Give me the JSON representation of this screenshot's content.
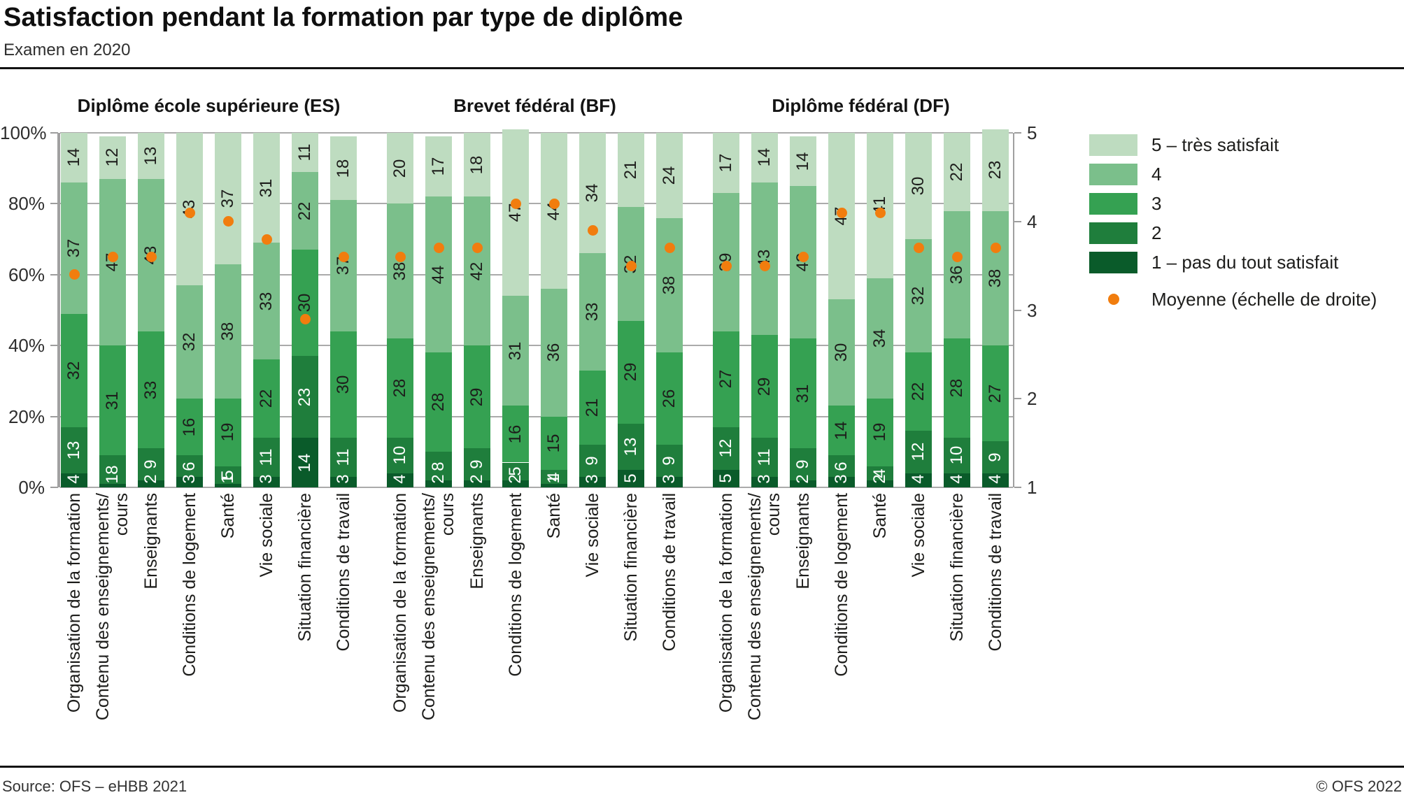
{
  "header": {
    "title": "Satisfaction pendant la formation par type de diplôme",
    "subtitle": "Examen en 2020"
  },
  "footer": {
    "source": "Source: OFS – eHBB 2021",
    "copyright": "© OFS 2022"
  },
  "legend": {
    "items": [
      {
        "label": "5 – très satisfait",
        "color": "#bedcc0"
      },
      {
        "label": "4",
        "color": "#7bbf8b"
      },
      {
        "label": "3",
        "color": "#35a152"
      },
      {
        "label": "2",
        "color": "#1f7e3c"
      },
      {
        "label": "1 – pas du tout satisfait",
        "color": "#0a5b2a"
      }
    ],
    "mean": {
      "label": "Moyenne (échelle de droite)",
      "color": "#f17d0e"
    }
  },
  "chart_data": {
    "type": "bar",
    "stacked": true,
    "value_unit": "%",
    "title": "Satisfaction pendant la formation par type de diplôme",
    "subtitle": "Examen en 2020",
    "ratings_bottom_to_top": [
      "1",
      "2",
      "3",
      "4",
      "5"
    ],
    "colors": {
      "1": "#0a5b2a",
      "2": "#1f7e3c",
      "3": "#35a152",
      "4": "#7bbf8b",
      "5": "#bedcc0",
      "mean": "#f17d0e"
    },
    "left_axis": {
      "ticks": [
        "0%",
        "20%",
        "40%",
        "60%",
        "80%",
        "100%"
      ],
      "range": [
        0,
        100
      ]
    },
    "right_axis": {
      "ticks": [
        "1",
        "2",
        "3",
        "4",
        "5"
      ],
      "range": [
        1,
        5
      ]
    },
    "categories": [
      [
        "Organisation de la formation"
      ],
      [
        "Contenu des enseignements/",
        "cours"
      ],
      [
        "Enseignants"
      ],
      [
        "Conditions de logement"
      ],
      [
        "Santé"
      ],
      [
        "Vie sociale"
      ],
      [
        "Situation financière"
      ],
      [
        "Conditions de travail"
      ]
    ],
    "groups": [
      {
        "name": "Diplôme école supérieure (ES)",
        "bars": [
          {
            "values": [
              4,
              13,
              32,
              37,
              14
            ],
            "mean": 3.4
          },
          {
            "values": [
              1,
              8,
              31,
              47,
              12
            ],
            "mean": 3.6
          },
          {
            "values": [
              2,
              9,
              33,
              43,
              13
            ],
            "mean": 3.6
          },
          {
            "values": [
              3,
              6,
              16,
              32,
              43
            ],
            "mean": 4.1
          },
          {
            "values": [
              1,
              5,
              19,
              38,
              37
            ],
            "mean": 4.0
          },
          {
            "values": [
              3,
              11,
              22,
              33,
              31
            ],
            "mean": 3.8
          },
          {
            "values": [
              14,
              23,
              30,
              22,
              11
            ],
            "mean": 2.9
          },
          {
            "values": [
              3,
              11,
              30,
              37,
              18
            ],
            "mean": 3.6
          }
        ]
      },
      {
        "name": "Brevet fédéral (BF)",
        "bars": [
          {
            "values": [
              4,
              10,
              28,
              38,
              20
            ],
            "mean": 3.6
          },
          {
            "values": [
              2,
              8,
              28,
              44,
              17
            ],
            "mean": 3.7
          },
          {
            "values": [
              2,
              9,
              29,
              42,
              18
            ],
            "mean": 3.7
          },
          {
            "values": [
              2,
              5,
              16,
              31,
              47
            ],
            "mean": 4.2
          },
          {
            "values": [
              1,
              4,
              15,
              36,
              44
            ],
            "mean": 4.2
          },
          {
            "values": [
              3,
              9,
              21,
              33,
              34
            ],
            "mean": 3.9
          },
          {
            "values": [
              5,
              13,
              29,
              32,
              21
            ],
            "mean": 3.5
          },
          {
            "values": [
              3,
              9,
              26,
              38,
              24
            ],
            "mean": 3.7
          }
        ]
      },
      {
        "name": "Diplôme fédéral (DF)",
        "bars": [
          {
            "values": [
              5,
              12,
              27,
              39,
              17
            ],
            "mean": 3.5
          },
          {
            "values": [
              3,
              11,
              29,
              43,
              14
            ],
            "mean": 3.5
          },
          {
            "values": [
              2,
              9,
              31,
              43,
              14
            ],
            "mean": 3.6
          },
          {
            "values": [
              3,
              6,
              14,
              30,
              47
            ],
            "mean": 4.1
          },
          {
            "values": [
              2,
              4,
              19,
              34,
              41
            ],
            "mean": 4.1
          },
          {
            "values": [
              4,
              12,
              22,
              32,
              30
            ],
            "mean": 3.7
          },
          {
            "values": [
              4,
              10,
              28,
              36,
              22
            ],
            "mean": 3.6
          },
          {
            "values": [
              4,
              9,
              27,
              38,
              23
            ],
            "mean": 3.7
          }
        ]
      }
    ]
  }
}
